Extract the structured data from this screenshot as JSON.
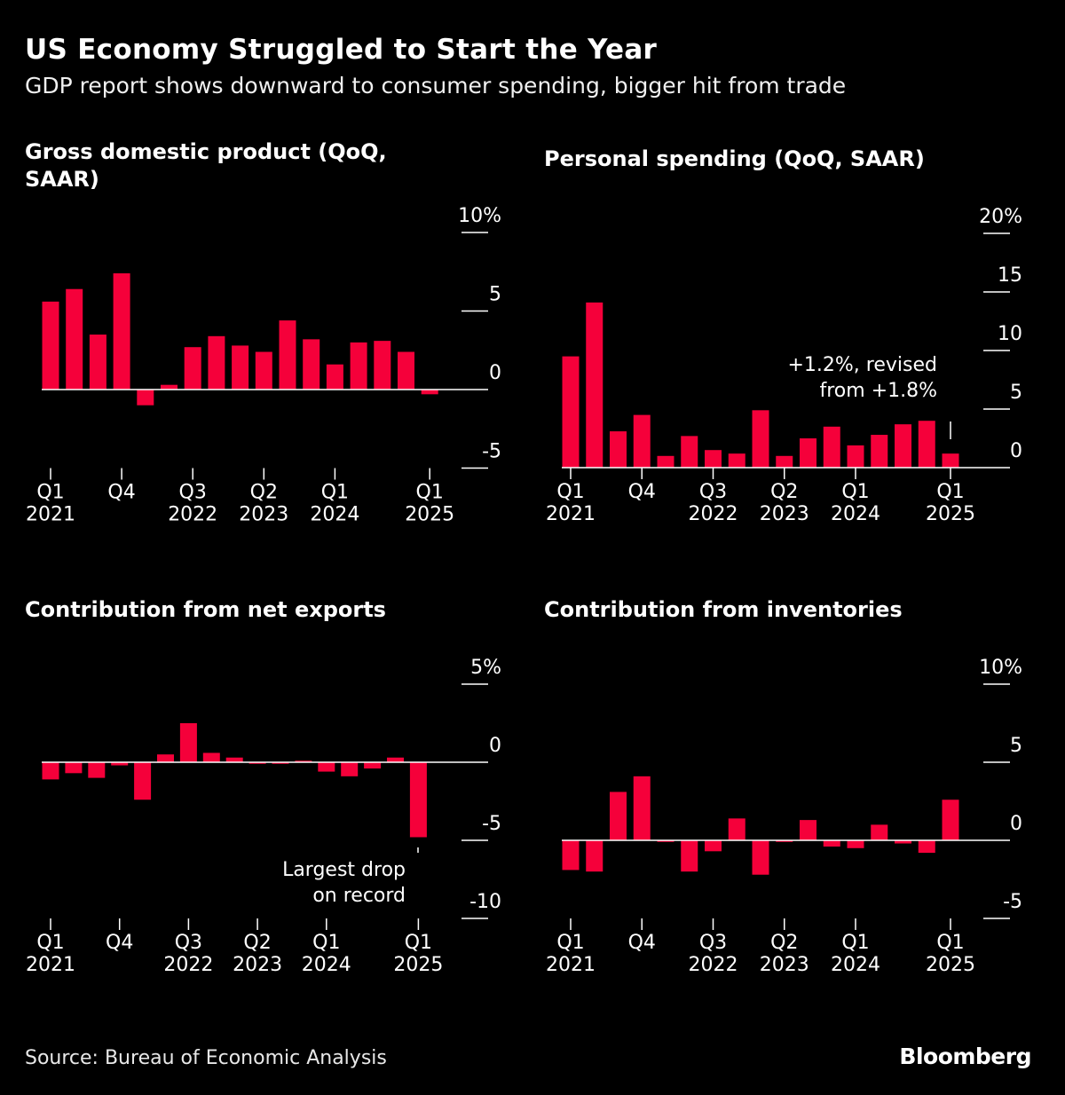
{
  "header": {
    "title": "US Economy Struggled to Start the Year",
    "subtitle": "GDP report shows downward to consumer spending, bigger hit from trade"
  },
  "footer": {
    "source": "Source: Bureau of Economic Analysis",
    "logo": "Bloomberg"
  },
  "colors": {
    "bar": "#f5003a",
    "background": "#000000",
    "axis": "#ffffff"
  },
  "chart_data": [
    {
      "type": "bar",
      "title": "Gross domestic product (QoQ, SAAR)",
      "categories": [
        "Q1 2021",
        "Q2 2021",
        "Q3 2021",
        "Q4 2021",
        "Q1 2022",
        "Q2 2022",
        "Q3 2022",
        "Q4 2022",
        "Q1 2023",
        "Q2 2023",
        "Q3 2023",
        "Q4 2023",
        "Q1 2024",
        "Q2 2024",
        "Q3 2024",
        "Q4 2024",
        "Q1 2025"
      ],
      "values": [
        5.6,
        6.4,
        3.5,
        7.4,
        -1.0,
        0.3,
        2.7,
        3.4,
        2.8,
        2.4,
        4.4,
        3.2,
        1.6,
        3.0,
        3.1,
        2.4,
        -0.3
      ],
      "ylim": [
        -5,
        10
      ],
      "yticks": [
        {
          "v": 10,
          "label": "10%"
        },
        {
          "v": 5,
          "label": "5"
        },
        {
          "v": 0,
          "label": "0"
        },
        {
          "v": -5,
          "label": "-5"
        }
      ],
      "xticks": [
        {
          "i": 0,
          "l1": "Q1",
          "l2": "2021"
        },
        {
          "i": 3,
          "l1": "Q4",
          "l2": ""
        },
        {
          "i": 6,
          "l1": "Q3",
          "l2": "2022"
        },
        {
          "i": 9,
          "l1": "Q2",
          "l2": "2023"
        },
        {
          "i": 12,
          "l1": "Q1",
          "l2": "2024"
        },
        {
          "i": 16,
          "l1": "Q1",
          "l2": "2025"
        }
      ],
      "annotation": []
    },
    {
      "type": "bar",
      "title": "Personal spending (QoQ, SAAR)",
      "categories": [
        "Q1 2021",
        "Q2 2021",
        "Q3 2021",
        "Q4 2021",
        "Q1 2022",
        "Q2 2022",
        "Q3 2022",
        "Q4 2022",
        "Q1 2023",
        "Q2 2023",
        "Q3 2023",
        "Q4 2023",
        "Q1 2024",
        "Q2 2024",
        "Q3 2024",
        "Q4 2024",
        "Q1 2025"
      ],
      "values": [
        9.5,
        14.1,
        3.1,
        4.5,
        1.0,
        2.7,
        1.5,
        1.2,
        4.9,
        1.0,
        2.5,
        3.5,
        1.9,
        2.8,
        3.7,
        4.0,
        1.2
      ],
      "ylim": [
        0,
        20
      ],
      "yticks": [
        {
          "v": 20,
          "label": "20%"
        },
        {
          "v": 15,
          "label": "15"
        },
        {
          "v": 10,
          "label": "10"
        },
        {
          "v": 5,
          "label": "5"
        },
        {
          "v": 0,
          "label": "0"
        }
      ],
      "xticks": [
        {
          "i": 0,
          "l1": "Q1",
          "l2": "2021"
        },
        {
          "i": 3,
          "l1": "Q4",
          "l2": ""
        },
        {
          "i": 6,
          "l1": "Q3",
          "l2": "2022"
        },
        {
          "i": 9,
          "l1": "Q2",
          "l2": "2023"
        },
        {
          "i": 12,
          "l1": "Q1",
          "l2": "2024"
        },
        {
          "i": 16,
          "l1": "Q1",
          "l2": "2025"
        }
      ],
      "annotation": [
        "+1.2%, revised",
        "from +1.8%"
      ]
    },
    {
      "type": "bar",
      "title": "Contribution from net exports",
      "categories": [
        "Q1 2021",
        "Q2 2021",
        "Q3 2021",
        "Q4 2021",
        "Q1 2022",
        "Q2 2022",
        "Q3 2022",
        "Q4 2022",
        "Q1 2023",
        "Q2 2023",
        "Q3 2023",
        "Q4 2023",
        "Q1 2024",
        "Q2 2024",
        "Q3 2024",
        "Q4 2024",
        "Q1 2025"
      ],
      "values": [
        -1.1,
        -0.7,
        -1.0,
        -0.2,
        -2.4,
        0.5,
        2.5,
        0.6,
        0.3,
        -0.1,
        -0.1,
        0.1,
        -0.6,
        -0.9,
        -0.4,
        0.3,
        -4.8
      ],
      "ylim": [
        -10,
        5
      ],
      "yticks": [
        {
          "v": 5,
          "label": "5%"
        },
        {
          "v": 0,
          "label": "0"
        },
        {
          "v": -5,
          "label": "-5"
        },
        {
          "v": -10,
          "label": "-10"
        }
      ],
      "xticks": [
        {
          "i": 0,
          "l1": "Q1",
          "l2": "2021"
        },
        {
          "i": 3,
          "l1": "Q4",
          "l2": ""
        },
        {
          "i": 6,
          "l1": "Q3",
          "l2": "2022"
        },
        {
          "i": 9,
          "l1": "Q2",
          "l2": "2023"
        },
        {
          "i": 12,
          "l1": "Q1",
          "l2": "2024"
        },
        {
          "i": 16,
          "l1": "Q1",
          "l2": "2025"
        }
      ],
      "annotation": [
        "Largest drop",
        "on record"
      ]
    },
    {
      "type": "bar",
      "title": "Contribution from inventories",
      "categories": [
        "Q1 2021",
        "Q2 2021",
        "Q3 2021",
        "Q4 2021",
        "Q1 2022",
        "Q2 2022",
        "Q3 2022",
        "Q4 2022",
        "Q1 2023",
        "Q2 2023",
        "Q3 2023",
        "Q4 2023",
        "Q1 2024",
        "Q2 2024",
        "Q3 2024",
        "Q4 2024",
        "Q1 2025"
      ],
      "values": [
        -1.9,
        -2.0,
        3.1,
        4.1,
        -0.1,
        -2.0,
        -0.7,
        1.4,
        -2.2,
        -0.1,
        1.3,
        -0.4,
        -0.5,
        1.0,
        -0.2,
        -0.8,
        2.6
      ],
      "ylim": [
        -5,
        10
      ],
      "yticks": [
        {
          "v": 10,
          "label": "10%"
        },
        {
          "v": 5,
          "label": "5"
        },
        {
          "v": 0,
          "label": "0"
        },
        {
          "v": -5,
          "label": "-5"
        }
      ],
      "xticks": [
        {
          "i": 0,
          "l1": "Q1",
          "l2": "2021"
        },
        {
          "i": 3,
          "l1": "Q4",
          "l2": ""
        },
        {
          "i": 6,
          "l1": "Q3",
          "l2": "2022"
        },
        {
          "i": 9,
          "l1": "Q2",
          "l2": "2023"
        },
        {
          "i": 12,
          "l1": "Q1",
          "l2": "2024"
        },
        {
          "i": 16,
          "l1": "Q1",
          "l2": "2025"
        }
      ],
      "annotation": []
    }
  ]
}
